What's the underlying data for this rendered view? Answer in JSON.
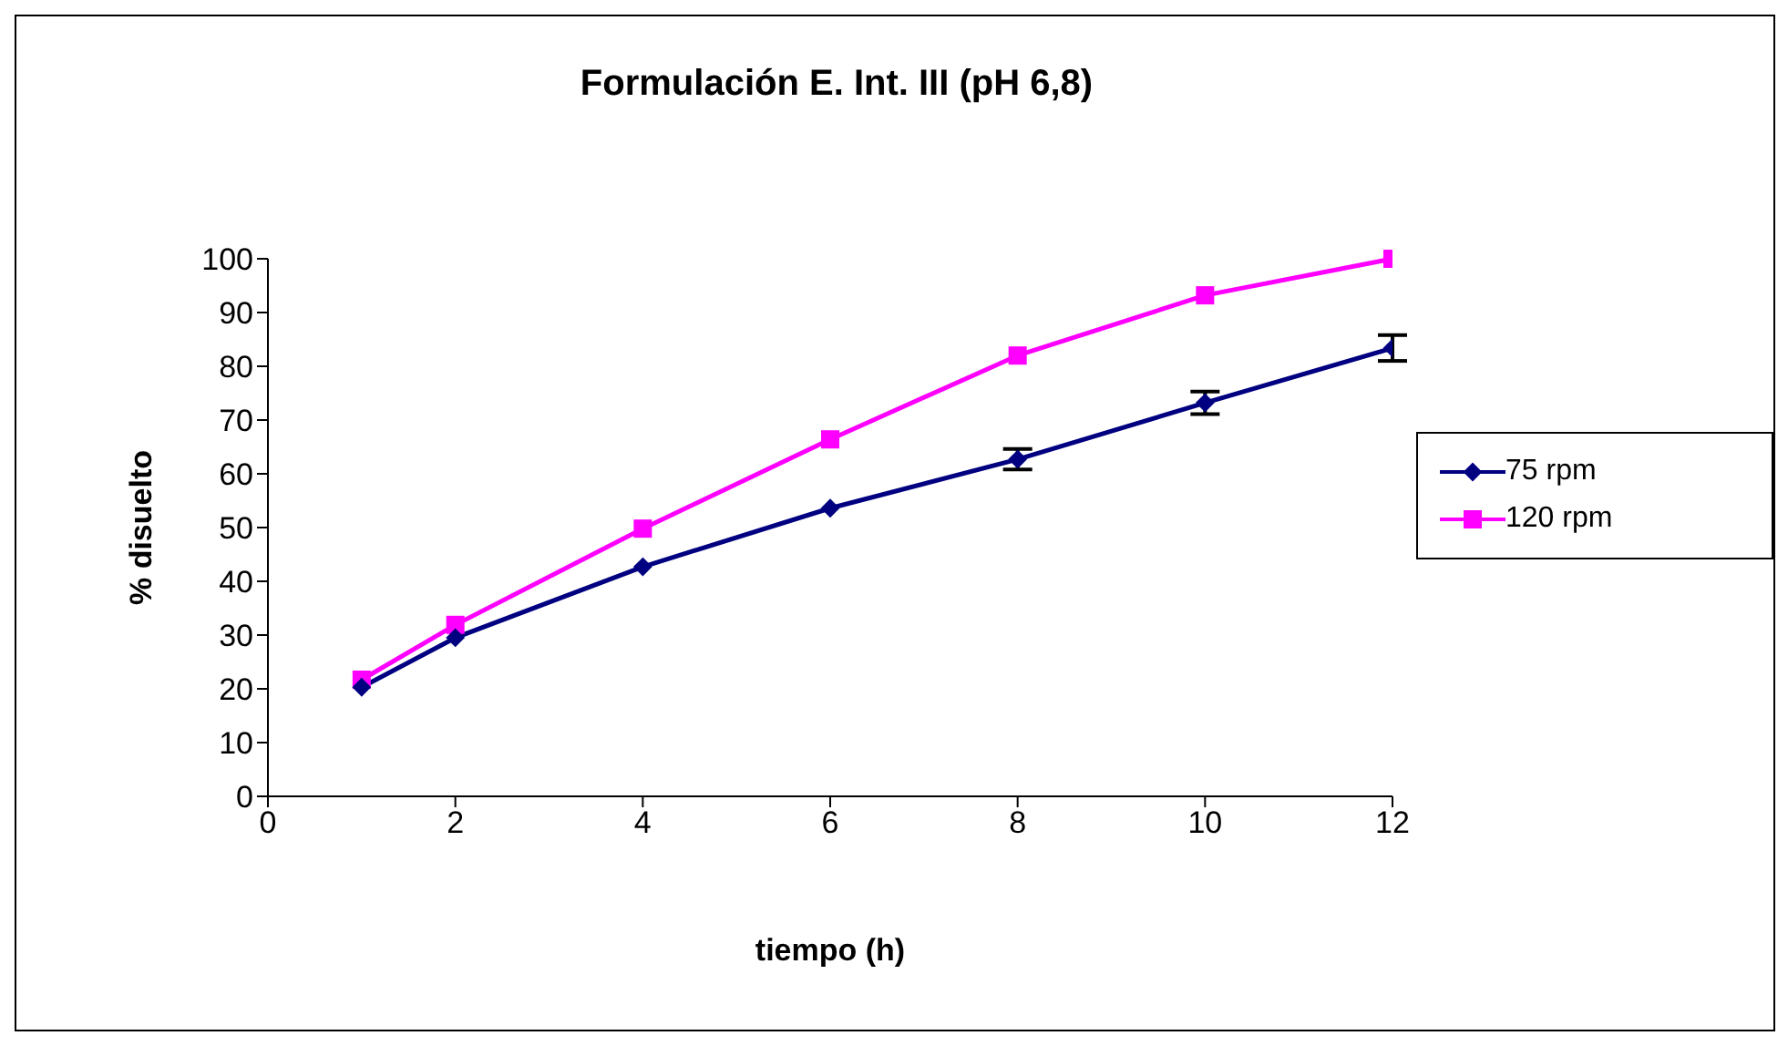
{
  "chart_data": {
    "type": "line",
    "title": "Formulación E. Int. III (pH 6,8)",
    "xlabel": "tiempo (h)",
    "ylabel": "% disuelto",
    "x": [
      1,
      2,
      4,
      6,
      8,
      10,
      12
    ],
    "series": [
      {
        "name": "75 rpm",
        "color": "#000080",
        "marker": "diamond",
        "values": [
          20.3,
          29.5,
          42.7,
          53.6,
          62.7,
          73.2,
          83.4
        ],
        "errors": [
          null,
          null,
          null,
          null,
          1.9,
          2.1,
          2.4
        ]
      },
      {
        "name": "120 rpm",
        "color": "#ff00ff",
        "marker": "square",
        "values": [
          21.7,
          31.9,
          49.8,
          66.4,
          82,
          93.2,
          100
        ]
      }
    ],
    "xlim": [
      0,
      12
    ],
    "xticks": [
      0,
      2,
      4,
      6,
      8,
      10,
      12
    ],
    "ylim": [
      0,
      100
    ],
    "yticks": [
      0,
      10,
      20,
      30,
      40,
      50,
      60,
      70,
      80,
      90,
      100
    ],
    "legend": "right",
    "line_style": "solid"
  }
}
